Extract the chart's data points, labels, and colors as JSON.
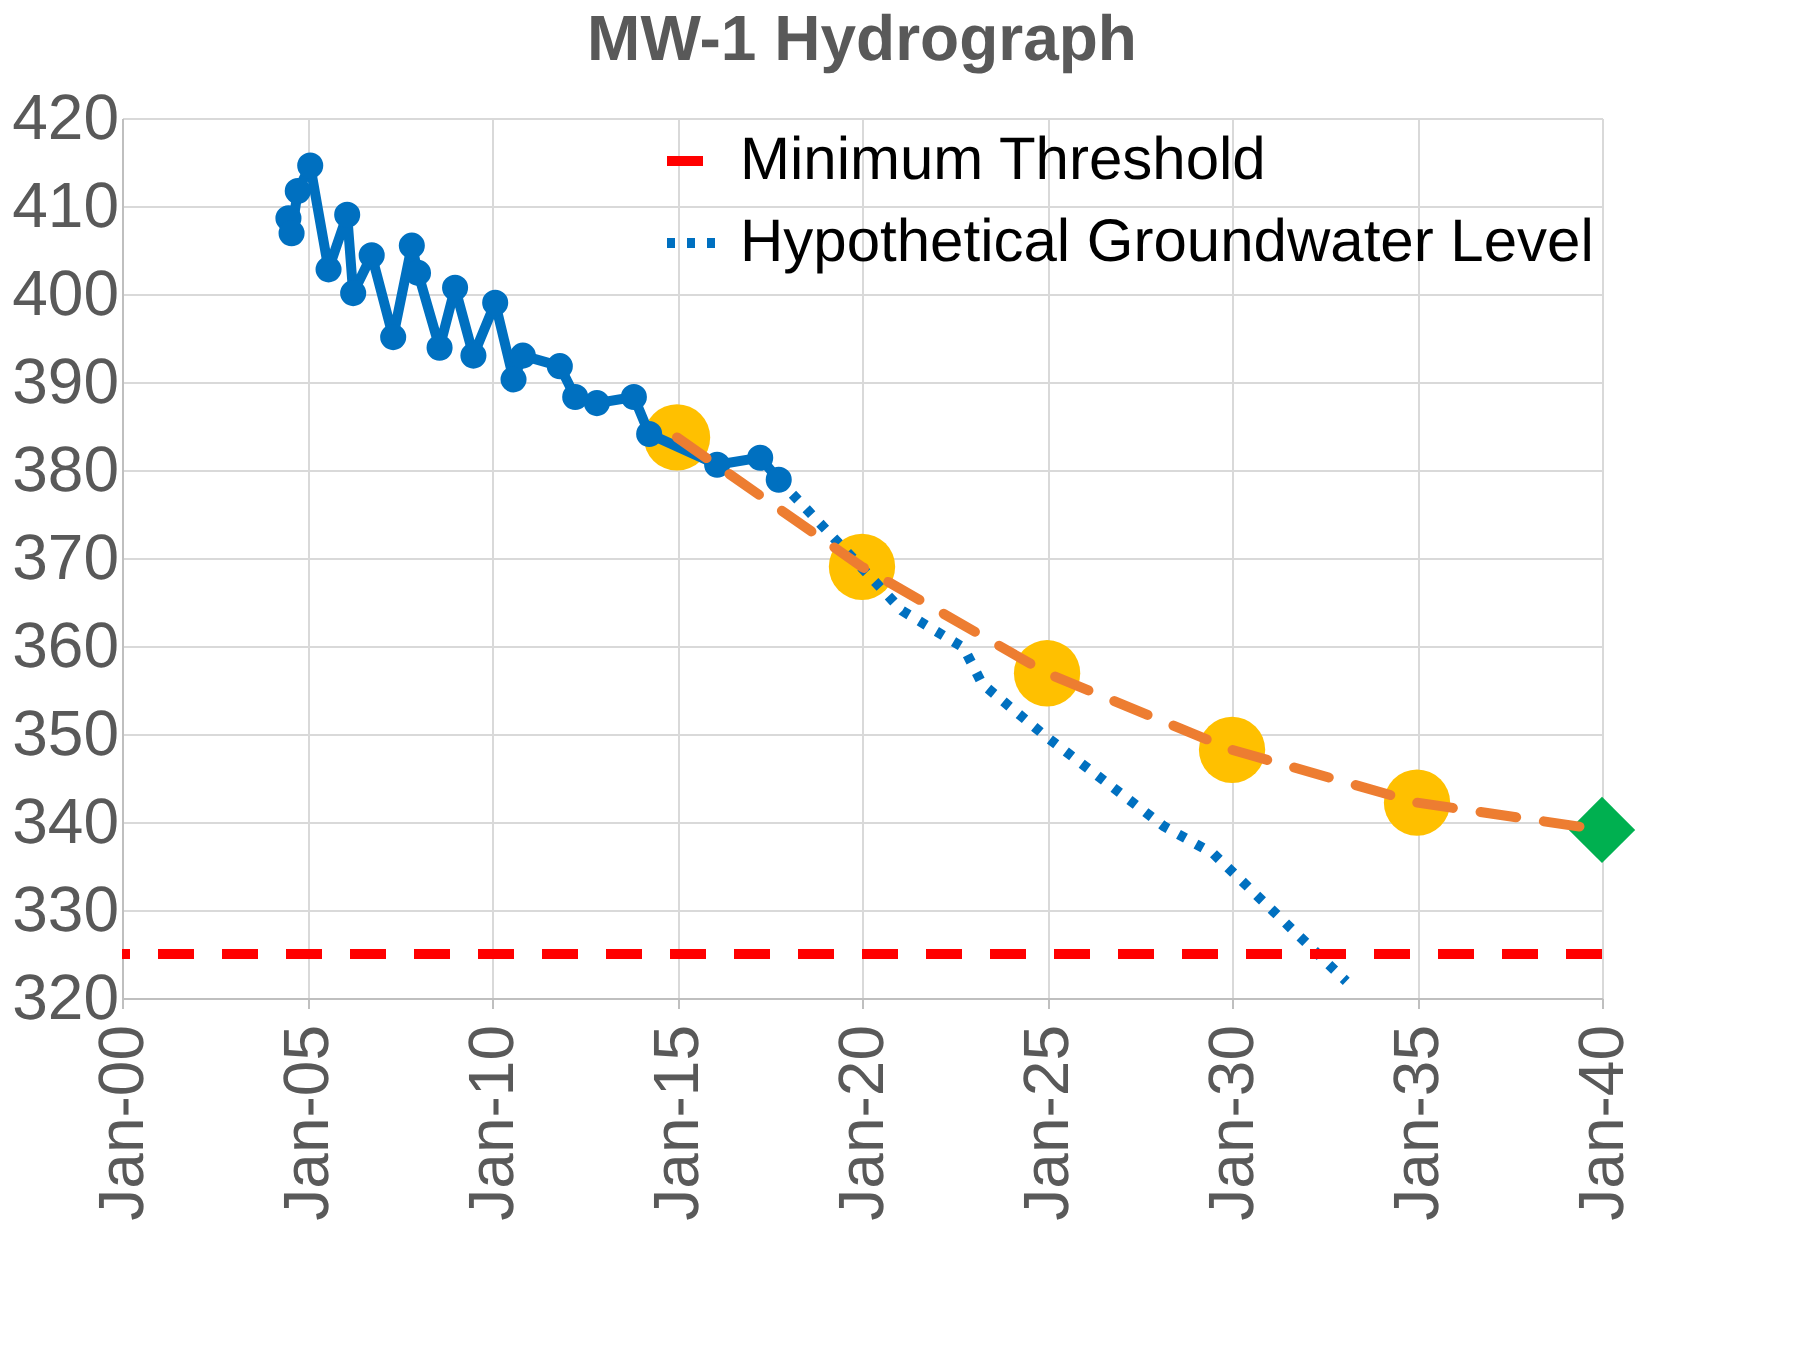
{
  "chart_data": {
    "type": "line",
    "title": "MW-1 Hydrograph",
    "xlim": [
      "2000-01",
      "2040-01"
    ],
    "xticks": [
      {
        "value": "2000-01",
        "label": "Jan-00"
      },
      {
        "value": "2005-01",
        "label": "Jan-05"
      },
      {
        "value": "2010-01",
        "label": "Jan-10"
      },
      {
        "value": "2015-01",
        "label": "Jan-15"
      },
      {
        "value": "2020-01",
        "label": "Jan-20"
      },
      {
        "value": "2025-01",
        "label": "Jan-25"
      },
      {
        "value": "2030-01",
        "label": "Jan-30"
      },
      {
        "value": "2035-01",
        "label": "Jan-35"
      },
      {
        "value": "2040-01",
        "label": "Jan-40"
      }
    ],
    "ylim": [
      320,
      420
    ],
    "yticks": [
      320,
      330,
      340,
      350,
      360,
      370,
      380,
      390,
      400,
      410,
      420
    ],
    "grid": true,
    "legend": "top right",
    "ref_lines": [
      {
        "axis": "y",
        "value": 325,
        "label": "Minimum Threshold",
        "color": "#ff0000",
        "line_style": "dashed"
      }
    ],
    "series": [
      {
        "type": "line",
        "color": "#0070c0",
        "marker": "circle",
        "x": [
          "2004-07",
          "2004-08",
          "2004-10",
          "2005-02",
          "2005-08",
          "2006-02",
          "2006-04",
          "2006-10",
          "2007-05",
          "2007-11",
          "2008-01",
          "2008-08",
          "2009-01",
          "2009-07",
          "2010-02",
          "2010-08",
          "2010-11",
          "2011-11",
          "2012-04",
          "2012-11",
          "2013-11",
          "2014-04",
          "2016-02",
          "2017-04",
          "2017-10"
        ],
        "values": [
          408.6,
          406.9,
          411.7,
          414.6,
          402.8,
          409.0,
          400.1,
          404.4,
          395.1,
          405.5,
          402.4,
          393.9,
          400.7,
          393.0,
          399.0,
          390.3,
          393.0,
          391.8,
          388.3,
          387.6,
          388.3,
          384.1,
          380.6,
          381.4,
          378.9
        ]
      },
      {
        "type": "line",
        "name": "Hypothetical Groundwater Level",
        "color": "#0070c0",
        "line_style": "dotted",
        "x": [
          "2017-10",
          "2019-10",
          "2021-02",
          "2022-10",
          "2023-04",
          "2024-12",
          "2028-03",
          "2029-07",
          "2033-02"
        ],
        "values": [
          378.9,
          370.0,
          364.0,
          359.8,
          355.7,
          349.9,
          339.5,
          336.4,
          321.9
        ]
      },
      {
        "type": "line",
        "color": "#ed7d31",
        "line_style": "dashed",
        "x": [
          "2015-01",
          "2020-01",
          "2025-01",
          "2030-01",
          "2035-01",
          "2040-01"
        ],
        "values": [
          383.7,
          369.0,
          356.9,
          348.2,
          342.2,
          339.1
        ]
      },
      {
        "type": "scatter",
        "color": "#ffc000",
        "marker": "circle",
        "x": [
          "2015-01",
          "2020-01",
          "2025-01",
          "2030-01",
          "2035-01"
        ],
        "values": [
          383.7,
          369.0,
          356.9,
          348.2,
          342.2
        ]
      },
      {
        "type": "scatter",
        "color": "#00b050",
        "marker": "diamond",
        "x": [
          "2040-01"
        ],
        "values": [
          339.1
        ]
      }
    ]
  }
}
